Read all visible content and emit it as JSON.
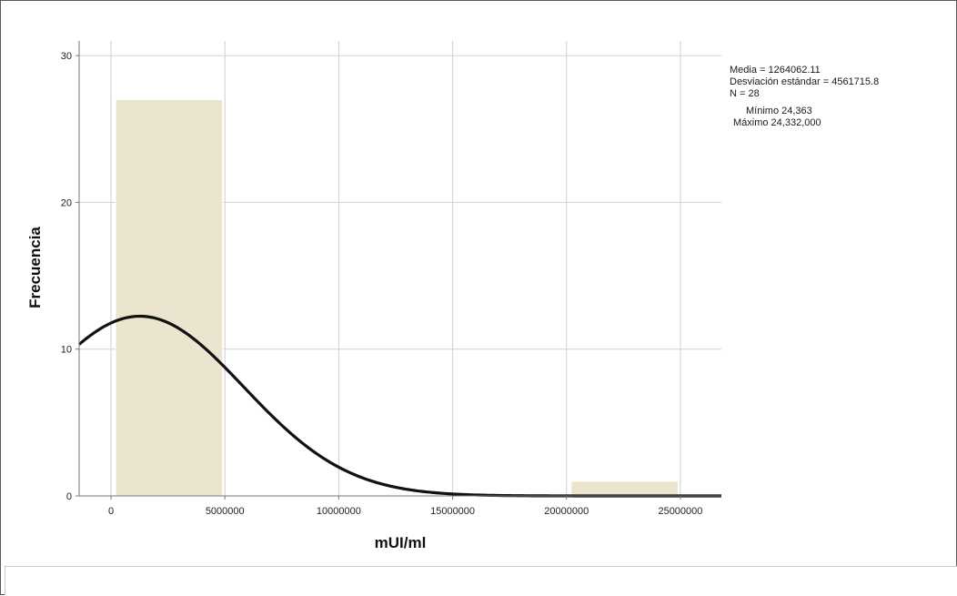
{
  "chart_data": {
    "type": "bar",
    "subtype": "histogram",
    "xlabel": "mUI/ml",
    "ylabel": "Frecuencia",
    "xlim": [
      -1400000,
      26800000
    ],
    "ylim": [
      0,
      31
    ],
    "x_ticks": [
      0,
      5000000,
      10000000,
      15000000,
      20000000,
      25000000
    ],
    "x_tick_labels": [
      "0",
      "5000000",
      "10000000",
      "15000000",
      "20000000",
      "25000000"
    ],
    "y_ticks": [
      0,
      10,
      20,
      30
    ],
    "y_tick_labels": [
      "0",
      "10",
      "20",
      "30"
    ],
    "bins": [
      {
        "x0": 200000,
        "x1": 4900000,
        "count": 27
      },
      {
        "x0": 20200000,
        "x1": 24900000,
        "count": 1
      }
    ],
    "normal_curve": {
      "mean": 1264062.11,
      "std": 4561715.8,
      "n": 28,
      "bin_width": 5000000,
      "color": "#111111"
    },
    "bar_color": "#ebe4cf",
    "grid": true,
    "stats_text": [
      "Media = 1264062.11",
      "Desviación estándar = 4561715.8",
      "N = 28",
      "Mínimo 24,363",
      "Máximo 24,332,000"
    ]
  }
}
